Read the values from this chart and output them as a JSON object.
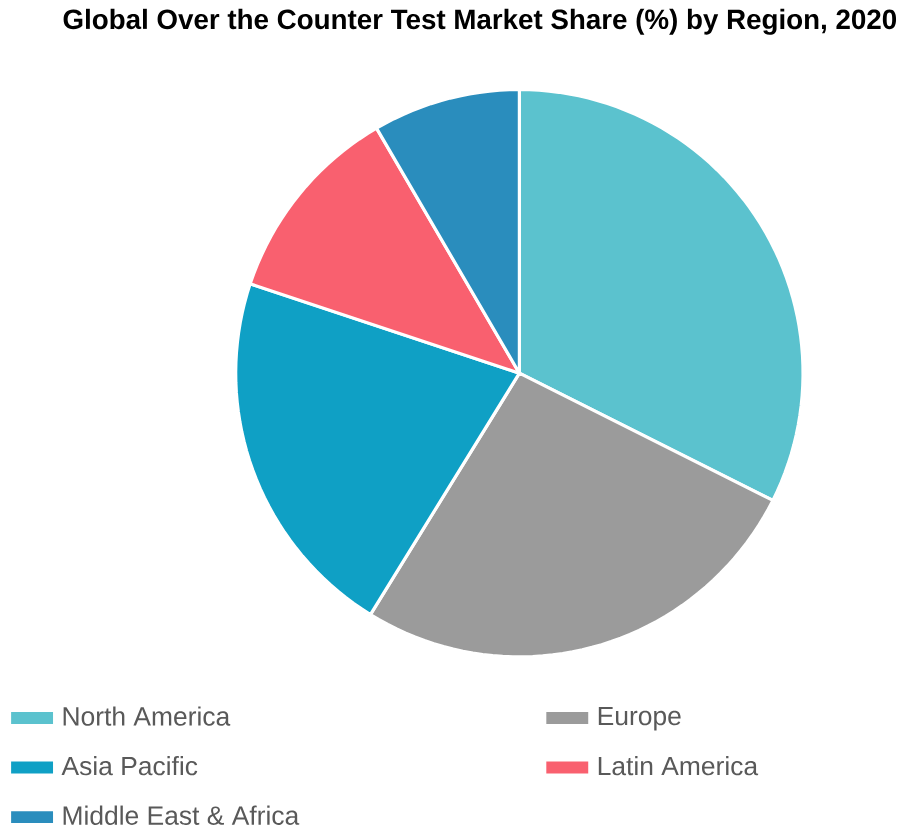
{
  "chart_data": {
    "type": "pie",
    "title": "Global Over the Counter Test Market Share (%) by Region, 2020",
    "categories": [
      "North America",
      "Europe",
      "Asia Pacific",
      "Latin America",
      "Middle East & Africa"
    ],
    "values": [
      32.4,
      26.4,
      21.3,
      11.5,
      8.4
    ],
    "colors": [
      "#5bc2ce",
      "#9b9b9b",
      "#0fa0c5",
      "#f9606f",
      "#2a8dbd"
    ],
    "legend": "bottom"
  }
}
